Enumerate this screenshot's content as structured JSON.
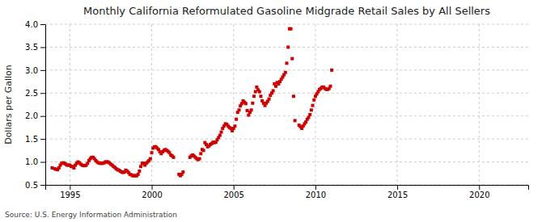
{
  "chart_data": {
    "type": "scatter",
    "title": "Monthly California Reformulated Gasoline Midgrade Retail Sales by All Sellers",
    "ylabel": "Dollars per Gallon",
    "annotations": [
      "Source: U.S. Energy Information Administration"
    ],
    "color": "#cc0000",
    "marker": "square",
    "grid": true,
    "xlim": [
      1993.5,
      2023.0
    ],
    "ylim": [
      0.5,
      4.0
    ],
    "xticks": [
      1995,
      2000,
      2005,
      2010,
      2015,
      2020
    ],
    "yticks": [
      0.5,
      {
        "value": 1.0,
        "label": "1.0"
      },
      1.5,
      {
        "value": 2.0,
        "label": "2.0"
      },
      2.5,
      {
        "value": 3.0,
        "label": "3.0"
      },
      3.5,
      {
        "value": 4.0,
        "label": "4.0"
      }
    ],
    "x": [
      1993.917,
      1994.083,
      1994.167,
      1994.25,
      1994.333,
      1994.417,
      1994.5,
      1994.583,
      1994.667,
      1994.75,
      1994.833,
      1994.917,
      1995.0,
      1995.083,
      1995.167,
      1995.25,
      1995.333,
      1995.417,
      1995.5,
      1995.583,
      1995.667,
      1995.75,
      1995.833,
      1995.917,
      1996.0,
      1996.083,
      1996.167,
      1996.25,
      1996.333,
      1996.417,
      1996.5,
      1996.583,
      1996.667,
      1996.75,
      1996.833,
      1996.917,
      1997.0,
      1997.083,
      1997.167,
      1997.25,
      1997.333,
      1997.417,
      1997.5,
      1997.583,
      1997.667,
      1997.75,
      1997.833,
      1997.917,
      1998.0,
      1998.083,
      1998.167,
      1998.25,
      1998.333,
      1998.417,
      1998.5,
      1998.583,
      1998.667,
      1998.75,
      1998.833,
      1998.917,
      1999.0,
      1999.083,
      1999.167,
      1999.25,
      1999.333,
      1999.417,
      1999.5,
      1999.583,
      1999.667,
      1999.75,
      1999.833,
      1999.917,
      2000.0,
      2000.083,
      2000.167,
      2000.25,
      2000.333,
      2000.417,
      2000.5,
      2000.583,
      2000.667,
      2000.75,
      2000.833,
      2000.917,
      2001.0,
      2001.083,
      2001.167,
      2001.25,
      2001.333,
      2001.667,
      2001.75,
      2001.833,
      2001.917,
      2002.333,
      2002.417,
      2002.5,
      2002.583,
      2002.667,
      2002.75,
      2002.833,
      2002.917,
      2003.0,
      2003.083,
      2003.167,
      2003.25,
      2003.333,
      2003.417,
      2003.5,
      2003.583,
      2003.667,
      2003.75,
      2003.833,
      2003.917,
      2004.0,
      2004.083,
      2004.167,
      2004.25,
      2004.333,
      2004.417,
      2004.5,
      2004.583,
      2004.667,
      2004.75,
      2004.833,
      2004.917,
      2005.0,
      2005.083,
      2005.167,
      2005.25,
      2005.333,
      2005.417,
      2005.5,
      2005.583,
      2005.667,
      2005.75,
      2005.833,
      2005.917,
      2006.0,
      2006.083,
      2006.167,
      2006.25,
      2006.333,
      2006.417,
      2006.5,
      2006.583,
      2006.667,
      2006.75,
      2006.833,
      2006.917,
      2007.0,
      2007.083,
      2007.167,
      2007.25,
      2007.333,
      2007.417,
      2007.5,
      2007.583,
      2007.667,
      2007.75,
      2007.833,
      2007.917,
      2008.0,
      2008.083,
      2008.167,
      2008.25,
      2008.333,
      2008.417,
      2008.5,
      2008.583,
      2008.667,
      2008.75,
      2009.0,
      2009.083,
      2009.167,
      2009.25,
      2009.333,
      2009.417,
      2009.5,
      2009.583,
      2009.667,
      2009.75,
      2009.833,
      2009.917,
      2010.0,
      2010.083,
      2010.167,
      2010.25,
      2010.333,
      2010.417,
      2010.5,
      2010.583,
      2010.667,
      2010.75,
      2010.833,
      2010.917,
      2011.0
    ],
    "values": [
      0.87,
      0.85,
      0.84,
      0.83,
      0.87,
      0.93,
      0.97,
      0.98,
      0.97,
      0.95,
      0.93,
      0.93,
      0.93,
      0.9,
      0.9,
      0.87,
      0.93,
      0.97,
      1.0,
      0.98,
      0.95,
      0.93,
      0.92,
      0.92,
      0.93,
      0.97,
      1.03,
      1.07,
      1.1,
      1.1,
      1.07,
      1.03,
      1.0,
      0.98,
      0.97,
      0.97,
      0.97,
      0.98,
      1.0,
      1.0,
      1.0,
      0.98,
      0.95,
      0.93,
      0.9,
      0.88,
      0.85,
      0.83,
      0.82,
      0.8,
      0.78,
      0.77,
      0.78,
      0.82,
      0.8,
      0.77,
      0.73,
      0.72,
      0.7,
      0.7,
      0.7,
      0.7,
      0.73,
      0.8,
      0.9,
      0.97,
      0.97,
      0.93,
      0.97,
      1.0,
      1.03,
      1.07,
      1.2,
      1.3,
      1.33,
      1.33,
      1.3,
      1.27,
      1.22,
      1.18,
      1.22,
      1.25,
      1.27,
      1.25,
      1.23,
      1.2,
      1.15,
      1.13,
      1.1,
      0.73,
      0.7,
      0.73,
      0.78,
      1.1,
      1.13,
      1.15,
      1.13,
      1.1,
      1.07,
      1.05,
      1.07,
      1.18,
      1.27,
      1.25,
      1.42,
      1.38,
      1.33,
      1.35,
      1.38,
      1.4,
      1.43,
      1.42,
      1.43,
      1.48,
      1.53,
      1.58,
      1.65,
      1.73,
      1.78,
      1.83,
      1.82,
      1.78,
      1.75,
      1.73,
      1.68,
      1.73,
      1.78,
      1.93,
      2.08,
      2.13,
      2.22,
      2.27,
      2.33,
      2.3,
      2.27,
      2.12,
      2.02,
      2.08,
      2.13,
      2.28,
      2.43,
      2.53,
      2.63,
      2.57,
      2.53,
      2.43,
      2.33,
      2.28,
      2.23,
      2.28,
      2.32,
      2.37,
      2.45,
      2.5,
      2.55,
      2.7,
      2.65,
      2.73,
      2.7,
      2.75,
      2.8,
      2.85,
      2.9,
      2.95,
      3.15,
      3.5,
      3.9,
      3.9,
      3.25,
      2.43,
      1.9,
      1.8,
      1.77,
      1.73,
      1.78,
      1.83,
      1.87,
      1.93,
      1.97,
      2.03,
      2.13,
      2.23,
      2.35,
      2.43,
      2.48,
      2.53,
      2.58,
      2.6,
      2.63,
      2.63,
      2.6,
      2.58,
      2.58,
      2.6,
      2.65,
      3.0
    ]
  }
}
